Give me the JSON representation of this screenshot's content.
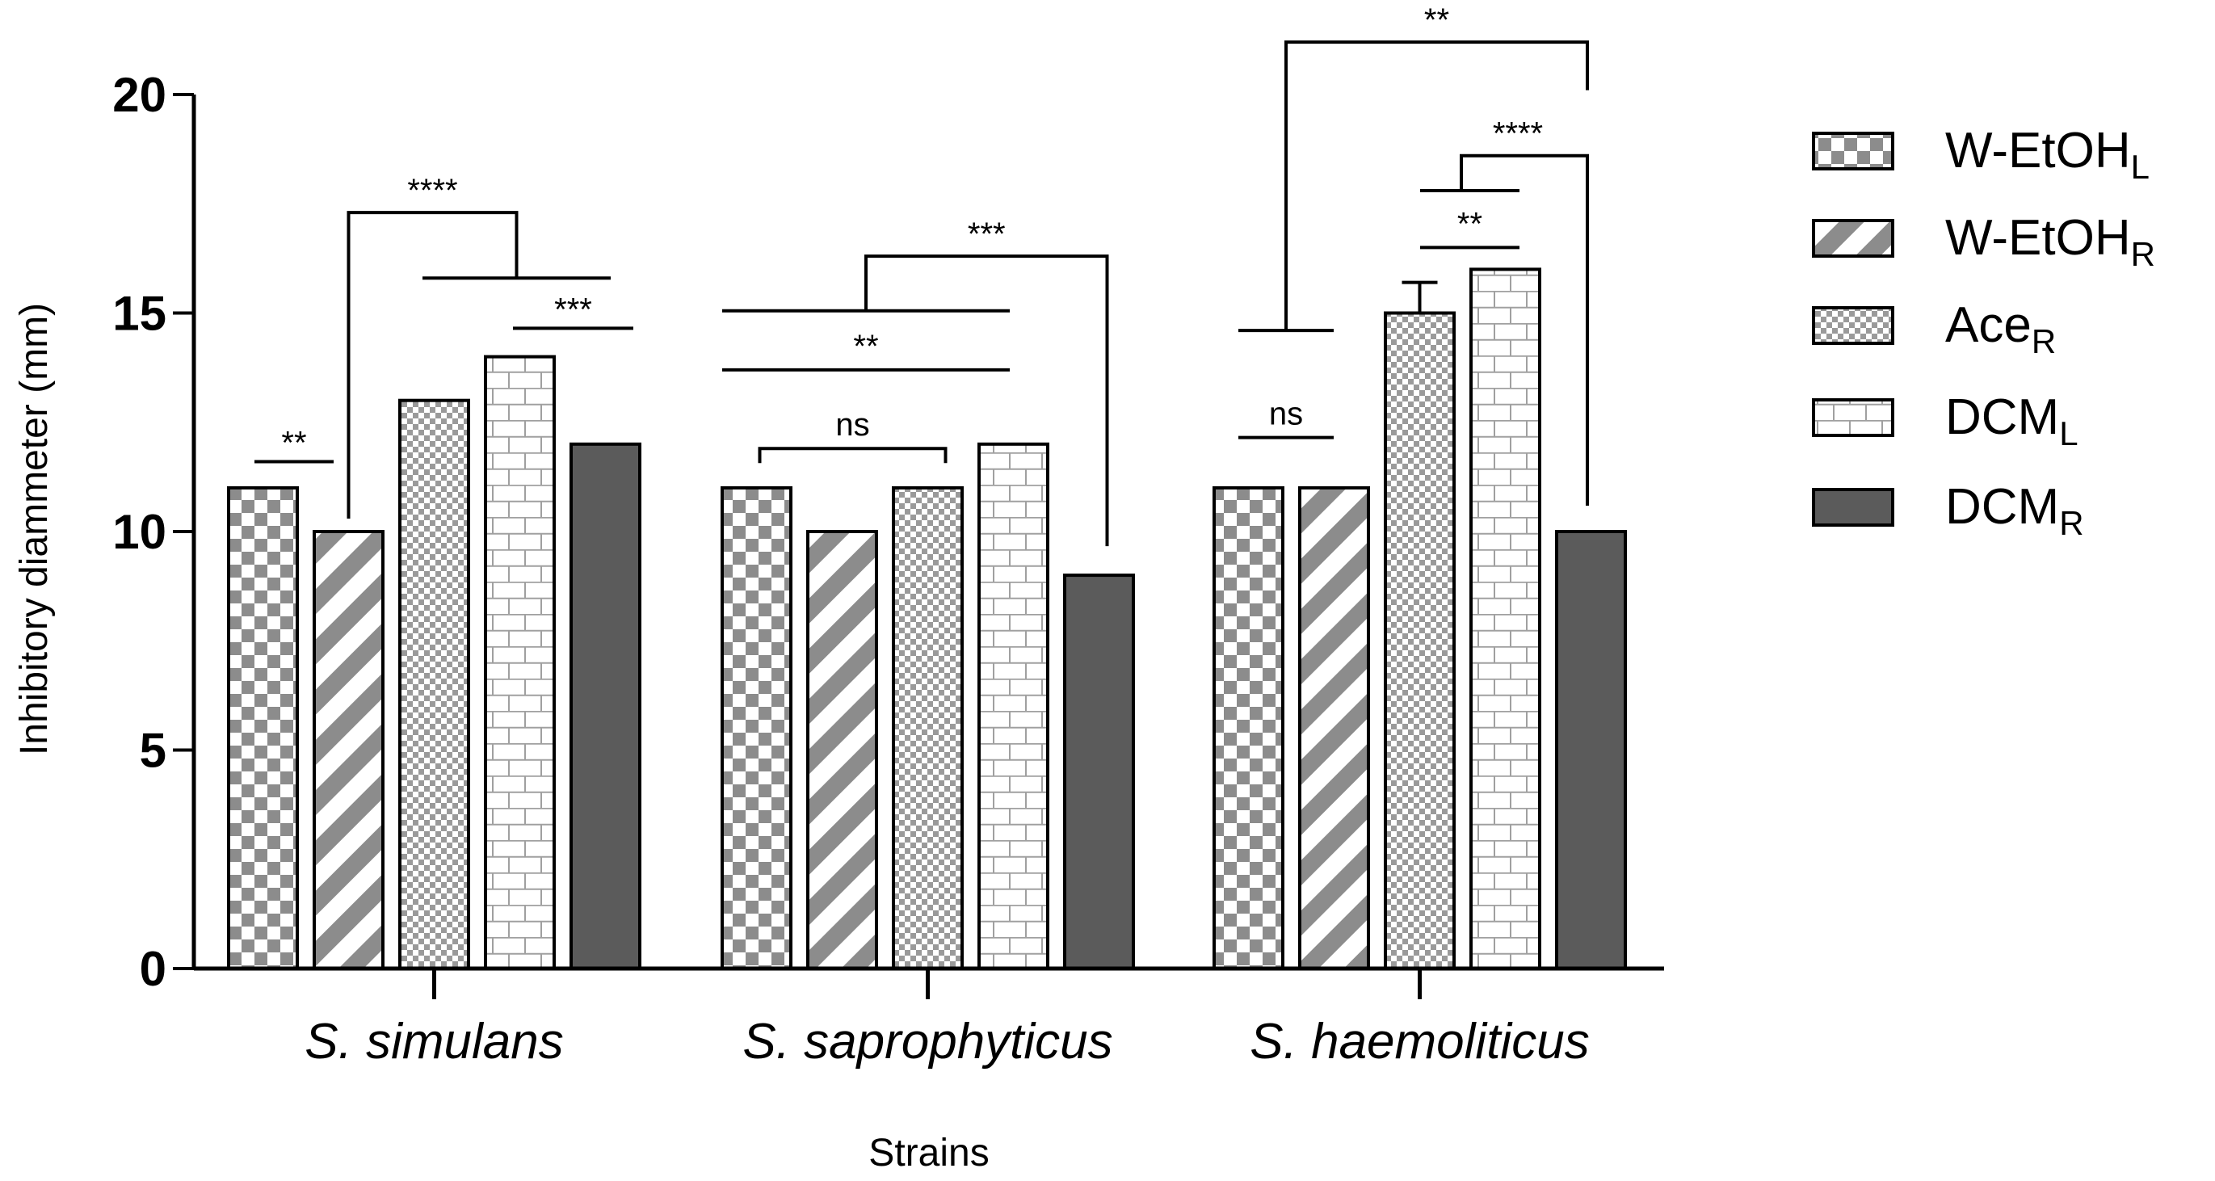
{
  "chart_data": {
    "type": "bar",
    "title": "",
    "xlabel": "Strains",
    "ylabel": "Inhibitory diammeter (mm)",
    "ylim": [
      0,
      20
    ],
    "yticks": [
      0,
      5,
      10,
      15,
      20
    ],
    "grid": false,
    "legend_position": "right",
    "categories": [
      "S. simulans",
      "S. saprophyticus",
      "S. haemoliticus"
    ],
    "series": [
      {
        "name": "W-EtOH",
        "subscript": "L",
        "pattern": "checker",
        "values": [
          11,
          11,
          11
        ]
      },
      {
        "name": "W-EtOH",
        "subscript": "R",
        "pattern": "diagonal",
        "values": [
          10,
          10,
          11
        ]
      },
      {
        "name": "Ace",
        "subscript": "R",
        "pattern": "dots",
        "values": [
          13,
          11,
          15
        ]
      },
      {
        "name": "DCM",
        "subscript": "L",
        "pattern": "brick",
        "values": [
          14,
          12,
          16
        ]
      },
      {
        "name": "DCM",
        "subscript": "R",
        "pattern": "solid",
        "values": [
          12,
          9,
          10
        ]
      }
    ],
    "error_bars": [
      {
        "category": 2,
        "series": 2,
        "plus": 0.7
      }
    ],
    "significance": [
      {
        "category": 0,
        "from": 0,
        "to": 1,
        "label": "**"
      },
      {
        "category": 0,
        "from": 1,
        "to": "3-4",
        "label": "****"
      },
      {
        "category": 0,
        "from": 3,
        "to": 4,
        "label": "***"
      },
      {
        "category": 1,
        "from": 0,
        "to": 2,
        "label": "ns"
      },
      {
        "category": 1,
        "from": 0,
        "to": 3,
        "label": "**"
      },
      {
        "category": 1,
        "from": "0-3",
        "to": 4,
        "label": "***"
      },
      {
        "category": 2,
        "from": 0,
        "to": 1,
        "label": "ns"
      },
      {
        "category": 2,
        "from": 2,
        "to": 3,
        "label": "**"
      },
      {
        "category": 2,
        "from": "2-3",
        "to": 4,
        "label": "****"
      },
      {
        "category": 2,
        "from": "0-1",
        "to": 4,
        "label": "**"
      }
    ]
  },
  "colors": {
    "dark_fill": "#5b5b5b",
    "pattern_fill": "#8c8c8c",
    "brick_line": "#a0a0a0",
    "line": "#000000"
  }
}
